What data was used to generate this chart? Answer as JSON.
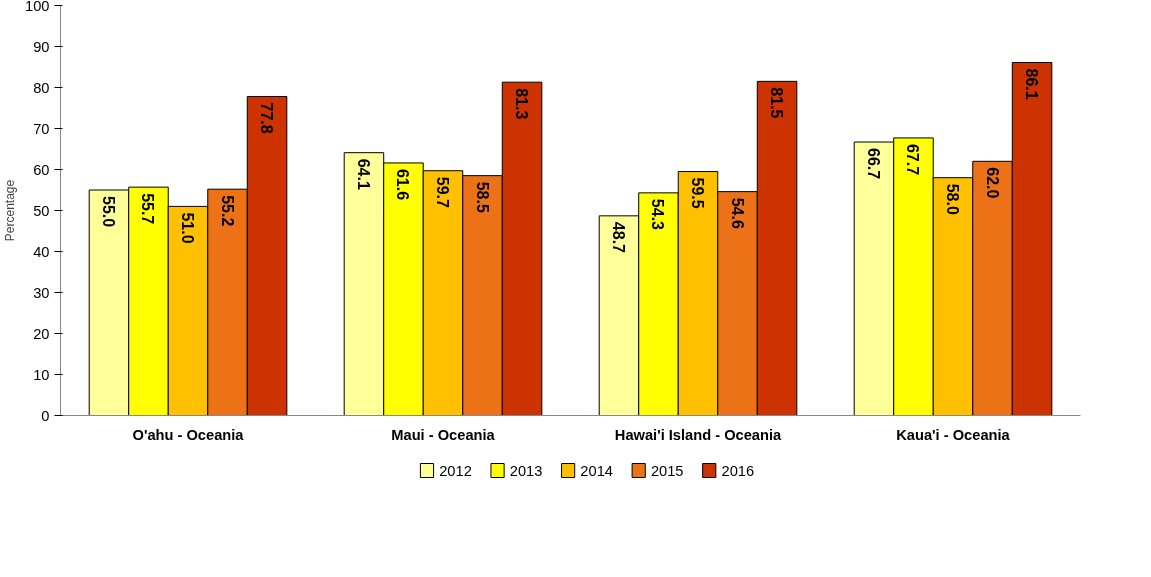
{
  "chart_data": {
    "type": "bar",
    "ylabel": "Percentage",
    "categories": [
      "O'ahu - Oceania",
      "Maui - Oceania",
      "Hawai'i Island - Oceania",
      "Kaua'i - Oceania"
    ],
    "series": [
      {
        "name": "2012",
        "color": "#ffff99",
        "values": [
          55.0,
          64.1,
          48.7,
          66.7
        ],
        "value_labels": [
          "55.0",
          "64.1",
          "48.7",
          "66.7"
        ]
      },
      {
        "name": "2013",
        "color": "#ffff00",
        "values": [
          55.7,
          61.6,
          54.3,
          67.7
        ],
        "value_labels": [
          "55.7",
          "61.6",
          "54.3",
          "67.7"
        ]
      },
      {
        "name": "2014",
        "color": "#ffc000",
        "values": [
          51.0,
          59.7,
          59.5,
          58.0
        ],
        "value_labels": [
          "51.0",
          "59.7",
          "59.5",
          "58.0"
        ]
      },
      {
        "name": "2015",
        "color": "#ed7117",
        "values": [
          55.2,
          58.5,
          54.6,
          62.0
        ],
        "value_labels": [
          "55.2",
          "58.5",
          "54.6",
          "62.0"
        ]
      },
      {
        "name": "2016",
        "color": "#cc3300",
        "values": [
          77.8,
          81.3,
          81.5,
          86.1
        ],
        "value_labels": [
          "77.8",
          "81.3",
          "81.5",
          "86.1"
        ]
      }
    ],
    "ylim": [
      0,
      100
    ],
    "yticks": [
      0,
      10,
      20,
      30,
      40,
      50,
      60,
      70,
      80,
      90,
      100
    ],
    "grid": false,
    "legend": "bottom"
  }
}
